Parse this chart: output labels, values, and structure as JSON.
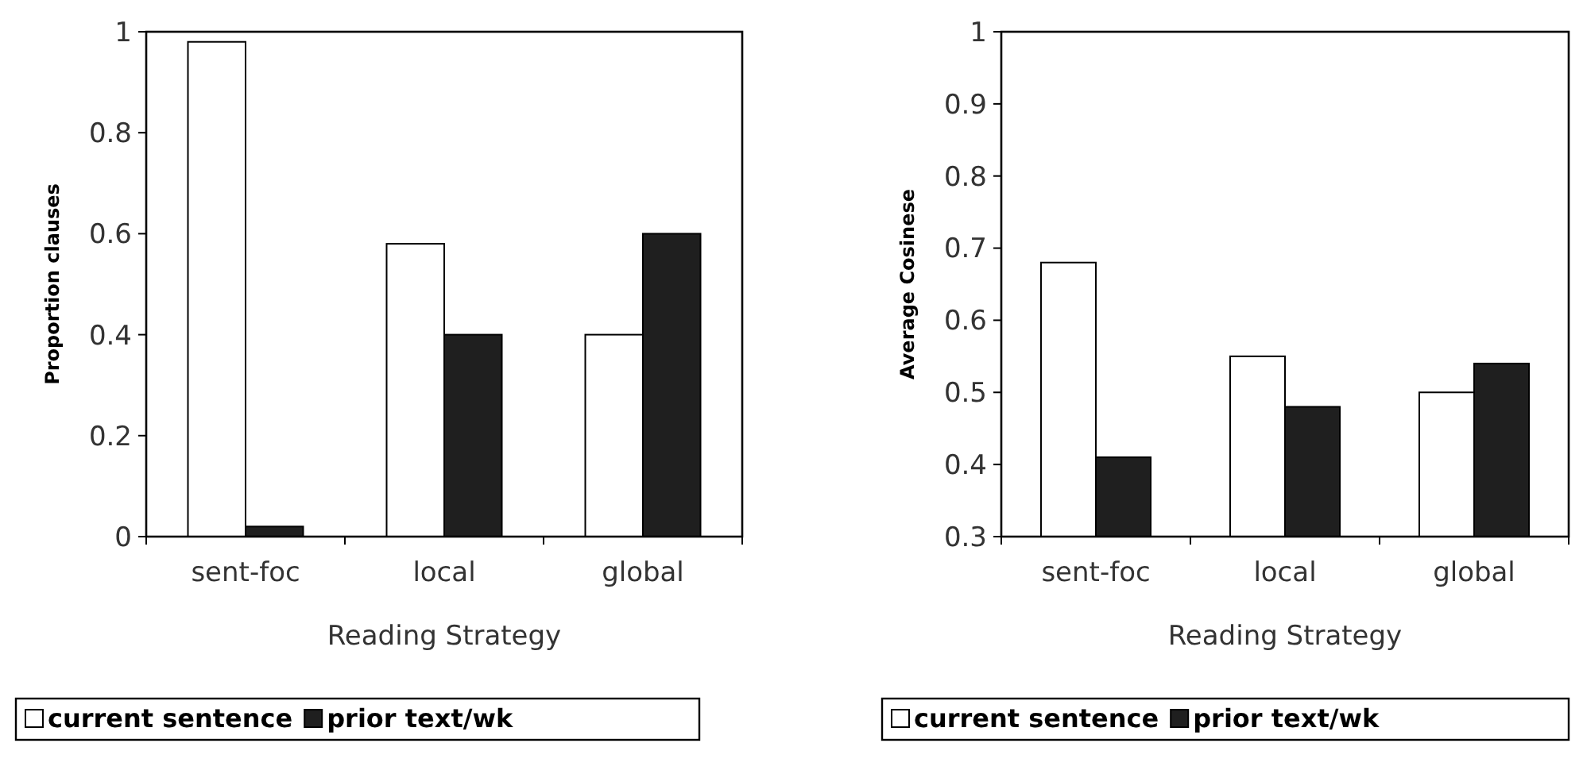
{
  "chart_data": [
    {
      "type": "bar",
      "xlabel": "Reading Strategy",
      "ylabel": "Proportion clauses",
      "categories": [
        "sent-foc",
        "local",
        "global"
      ],
      "series": [
        {
          "name": "current sentence",
          "color": "#ffffff",
          "values": [
            0.98,
            0.58,
            0.4
          ]
        },
        {
          "name": "prior text/wk",
          "color": "#1f1f1f",
          "values": [
            0.02,
            0.4,
            0.6
          ]
        }
      ],
      "ylim": [
        0,
        1
      ],
      "yticks": [
        0,
        0.2,
        0.4,
        0.6,
        0.8,
        1
      ],
      "grid": false,
      "legend": "bottom"
    },
    {
      "type": "bar",
      "xlabel": "Reading Strategy",
      "ylabel": "Average Cosinese",
      "categories": [
        "sent-foc",
        "local",
        "global"
      ],
      "series": [
        {
          "name": "current sentence",
          "color": "#ffffff",
          "values": [
            0.68,
            0.55,
            0.5
          ]
        },
        {
          "name": "prior text/wk",
          "color": "#1f1f1f",
          "values": [
            0.41,
            0.48,
            0.54
          ]
        }
      ],
      "ylim": [
        0.3,
        1
      ],
      "yticks": [
        0.3,
        0.4,
        0.5,
        0.6,
        0.7,
        0.8,
        0.9,
        1
      ],
      "grid": false,
      "legend": "bottom"
    }
  ]
}
